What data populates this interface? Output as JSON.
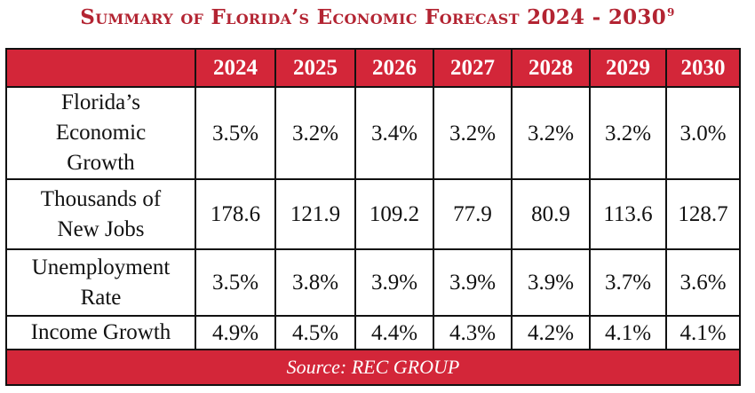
{
  "title": "Summary of Florida’s Economic Forecast 2024 - 2030",
  "title_footnote": "9",
  "chart_data": {
    "type": "table",
    "title": "Summary of Florida’s Economic Forecast 2024 - 2030",
    "columns": [
      "",
      "2024",
      "2025",
      "2026",
      "2027",
      "2028",
      "2029",
      "2030"
    ],
    "rows": [
      {
        "label_lines": [
          "Florida’s",
          "Economic",
          "Growth"
        ],
        "values": [
          "3.5%",
          "3.2%",
          "3.4%",
          "3.2%",
          "3.2%",
          "3.2%",
          "3.0%"
        ]
      },
      {
        "label_lines": [
          "Thousands of",
          "New Jobs"
        ],
        "values": [
          "178.6",
          "121.9",
          "109.2",
          "77.9",
          "80.9",
          "113.6",
          "128.7"
        ]
      },
      {
        "label_lines": [
          "Unemployment",
          "Rate"
        ],
        "values": [
          "3.5%",
          "3.8%",
          "3.9%",
          "3.9%",
          "3.9%",
          "3.7%",
          "3.6%"
        ]
      },
      {
        "label_lines": [
          "Income Growth"
        ],
        "values": [
          "4.9%",
          "4.5%",
          "4.4%",
          "4.3%",
          "4.2%",
          "4.1%",
          "4.1%"
        ]
      }
    ],
    "source": "Source: REC GROUP",
    "colors": {
      "header_bg": "#d32639",
      "title": "#b32432",
      "border": "#111111"
    }
  }
}
